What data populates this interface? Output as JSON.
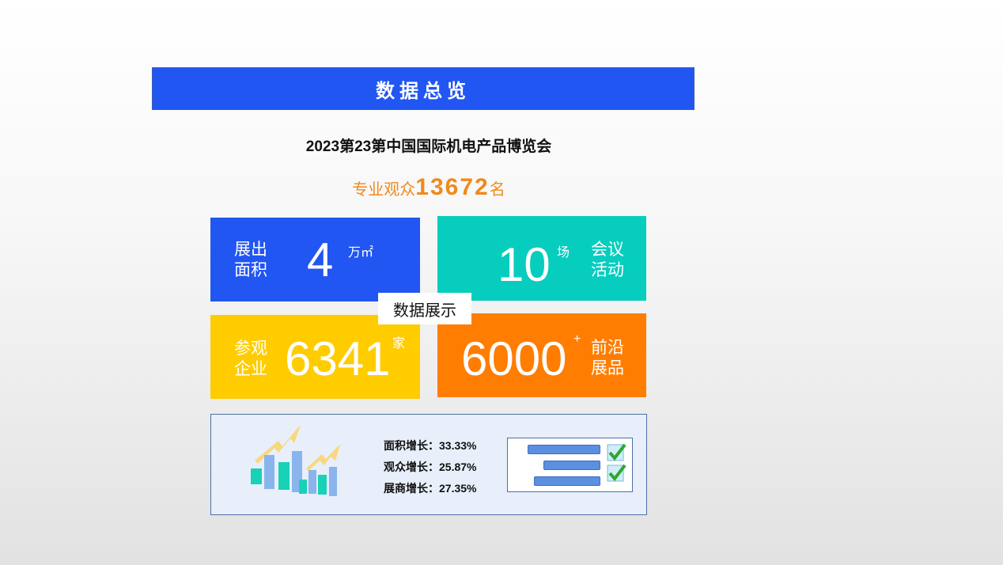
{
  "header": {
    "title": "数据总览"
  },
  "title": "2023第23第中国国际机电产品博览会",
  "visitors": {
    "prefix": "专业观众",
    "value": "13672",
    "suffix": "名"
  },
  "tiles": [
    {
      "label_line1": "展出",
      "label_line2": "面积",
      "value": "4",
      "unit": "万㎡",
      "color": "#2156F2"
    },
    {
      "label_line1": "会议",
      "label_line2": "活动",
      "value": "10",
      "unit": "场",
      "color": "#07CDBE"
    },
    {
      "label_line1": "参观",
      "label_line2": "企业",
      "value": "6341",
      "unit": "家",
      "color": "#FFCC00"
    },
    {
      "label_line1": "前沿",
      "label_line2": "展品",
      "value": "6000",
      "unit": "+",
      "color": "#FF7D00"
    }
  ],
  "badge": "数据展示",
  "growth": [
    {
      "label": "面积增长：",
      "value": "33.33%"
    },
    {
      "label": "观众增长：",
      "value": "25.87%"
    },
    {
      "label": "展商增长：",
      "value": "27.35%"
    }
  ],
  "icons": {
    "chart": "bar-chart-growth-icon",
    "checklist": "checklist-icon"
  }
}
